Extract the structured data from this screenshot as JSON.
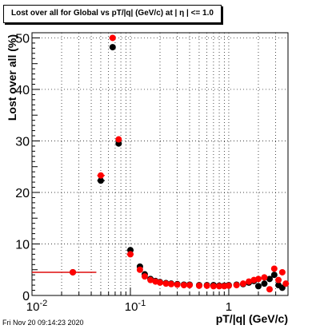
{
  "header": {
    "title": "Lost over all for Global vs pT/|q| (GeV/c) at |  η | <= 1.0"
  },
  "footer": {
    "timestamp": "Fri Nov 20 09:14:23 2020"
  },
  "colors": {
    "series_black": "#000000",
    "series_red": "#ff0000",
    "grid": "#000000"
  },
  "chart_data": {
    "type": "scatter",
    "title": "Lost over all for Global vs pT/|q| (GeV/c) at |  η | <= 1.0",
    "xlabel": "pT/|q| (GeV/c)",
    "ylabel": "Lost over all (%)",
    "x_scale": "log",
    "xlim": [
      0.01,
      4.0
    ],
    "ylim": [
      0,
      51
    ],
    "grid": true,
    "x_ticks": [
      {
        "value": 0.01,
        "label": "10^-2"
      },
      {
        "value": 0.1,
        "label": "10^-1"
      },
      {
        "value": 1,
        "label": "1"
      }
    ],
    "y_ticks": [
      0,
      10,
      20,
      30,
      40,
      50
    ],
    "series": [
      {
        "color": "#000000",
        "points": [
          {
            "x": 0.026,
            "y": 4.5,
            "xlow": 0.01,
            "xhigh": 0.045
          },
          {
            "x": 0.05,
            "y": 22.3,
            "xlow": 0.046,
            "xhigh": 0.055
          },
          {
            "x": 0.066,
            "y": 48.2
          },
          {
            "x": 0.076,
            "y": 29.5
          },
          {
            "x": 0.1,
            "y": 8.8,
            "xlow": 0.092,
            "xhigh": 0.108
          },
          {
            "x": 0.125,
            "y": 5.6
          },
          {
            "x": 0.14,
            "y": 4.1
          },
          {
            "x": 0.16,
            "y": 3.2
          },
          {
            "x": 0.18,
            "y": 2.8
          },
          {
            "x": 0.2,
            "y": 2.6
          },
          {
            "x": 0.23,
            "y": 2.4
          },
          {
            "x": 0.26,
            "y": 2.3
          },
          {
            "x": 0.3,
            "y": 2.2
          },
          {
            "x": 0.35,
            "y": 2.1
          },
          {
            "x": 0.4,
            "y": 2.1
          },
          {
            "x": 0.5,
            "y": 2.0
          },
          {
            "x": 0.6,
            "y": 2.0
          },
          {
            "x": 0.7,
            "y": 2.0
          },
          {
            "x": 0.8,
            "y": 1.9
          },
          {
            "x": 0.9,
            "y": 1.9
          },
          {
            "x": 1.0,
            "y": 2.0
          },
          {
            "x": 1.2,
            "y": 2.1
          },
          {
            "x": 1.4,
            "y": 2.2
          },
          {
            "x": 1.6,
            "y": 2.5
          },
          {
            "x": 1.8,
            "y": 2.8
          },
          {
            "x": 2.0,
            "y": 1.8
          },
          {
            "x": 2.3,
            "y": 2.3
          },
          {
            "x": 2.6,
            "y": 3.2
          },
          {
            "x": 2.9,
            "y": 4.0
          },
          {
            "x": 3.2,
            "y": 2.0
          },
          {
            "x": 3.5,
            "y": 1.5
          }
        ]
      },
      {
        "color": "#ff0000",
        "points": [
          {
            "x": 0.026,
            "y": 4.5,
            "xlow": 0.01,
            "xhigh": 0.045
          },
          {
            "x": 0.05,
            "y": 23.3,
            "xlow": 0.046,
            "xhigh": 0.055
          },
          {
            "x": 0.066,
            "y": 50.0
          },
          {
            "x": 0.076,
            "y": 30.3
          },
          {
            "x": 0.1,
            "y": 8.0,
            "xlow": 0.092,
            "xhigh": 0.108
          },
          {
            "x": 0.125,
            "y": 5.0
          },
          {
            "x": 0.14,
            "y": 3.7
          },
          {
            "x": 0.16,
            "y": 3.0
          },
          {
            "x": 0.18,
            "y": 2.7
          },
          {
            "x": 0.2,
            "y": 2.5
          },
          {
            "x": 0.23,
            "y": 2.3
          },
          {
            "x": 0.26,
            "y": 2.2
          },
          {
            "x": 0.3,
            "y": 2.1
          },
          {
            "x": 0.35,
            "y": 2.0
          },
          {
            "x": 0.4,
            "y": 2.0
          },
          {
            "x": 0.5,
            "y": 1.9
          },
          {
            "x": 0.6,
            "y": 1.9
          },
          {
            "x": 0.7,
            "y": 1.8
          },
          {
            "x": 0.8,
            "y": 1.8
          },
          {
            "x": 0.9,
            "y": 1.8
          },
          {
            "x": 1.0,
            "y": 1.9
          },
          {
            "x": 1.2,
            "y": 2.0
          },
          {
            "x": 1.4,
            "y": 2.3
          },
          {
            "x": 1.6,
            "y": 2.7
          },
          {
            "x": 1.8,
            "y": 3.0
          },
          {
            "x": 2.0,
            "y": 3.2
          },
          {
            "x": 2.3,
            "y": 3.5
          },
          {
            "x": 2.6,
            "y": 1.2
          },
          {
            "x": 2.9,
            "y": 5.2
          },
          {
            "x": 3.2,
            "y": 3.0
          },
          {
            "x": 3.5,
            "y": 4.5
          },
          {
            "x": 3.8,
            "y": 2.3
          }
        ]
      }
    ]
  }
}
